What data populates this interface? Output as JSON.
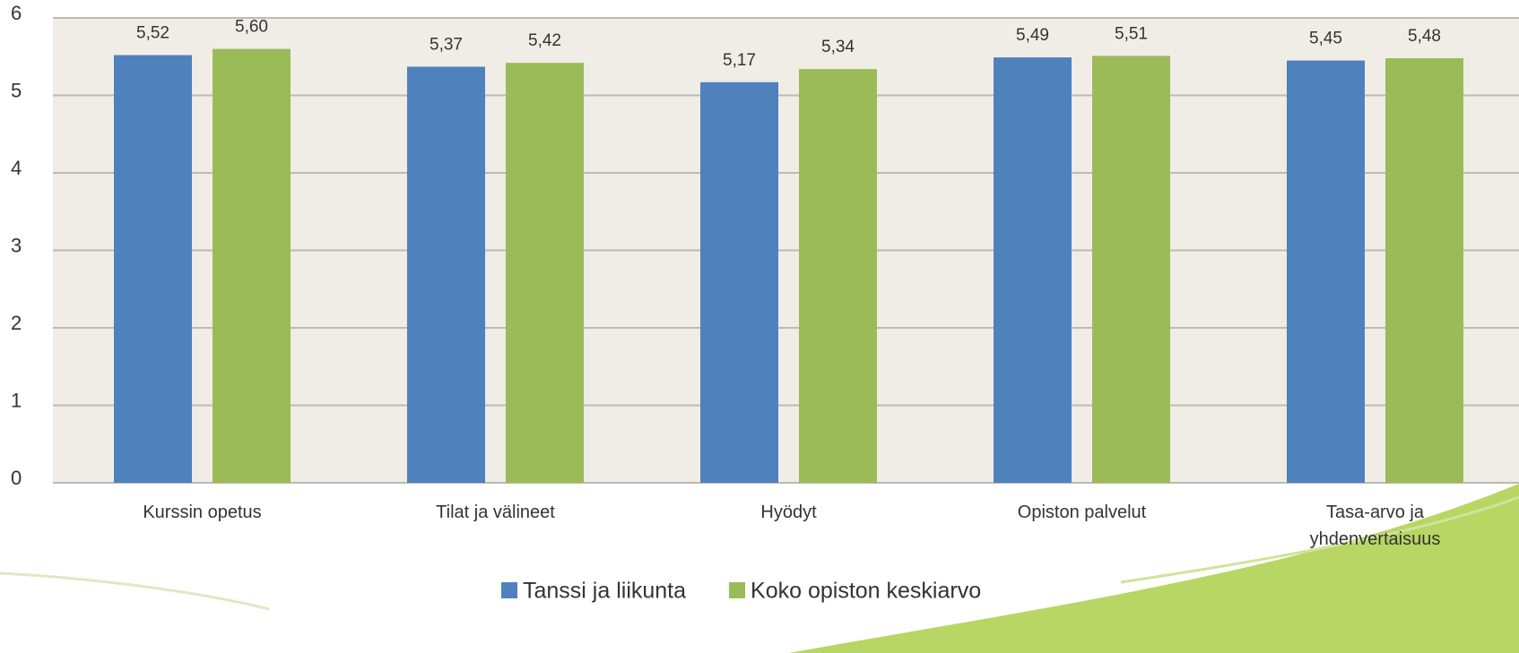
{
  "chart_data": {
    "type": "bar",
    "categories": [
      "Kurssin opetus",
      "Tilat ja välineet",
      "Hyödyt",
      "Opiston palvelut",
      "Tasa-arvo ja yhdenvertaisuus"
    ],
    "series": [
      {
        "name": "Tanssi ja liikunta",
        "color": "#4f81bd",
        "values": [
          5.52,
          5.37,
          5.17,
          5.49,
          5.45
        ],
        "value_labels": [
          "5,52",
          "5,37",
          "5,17",
          "5,49",
          "5,45"
        ]
      },
      {
        "name": "Koko opiston keskiarvo",
        "color": "#9bbb59",
        "values": [
          5.6,
          5.42,
          5.34,
          5.51,
          5.48
        ],
        "value_labels": [
          "5,60",
          "5,42",
          "5,34",
          "5,51",
          "5,48"
        ]
      }
    ],
    "ylim": [
      0,
      6
    ],
    "yticks": [
      0,
      1,
      2,
      3,
      4,
      5,
      6
    ],
    "grid": true,
    "legend": "bottom"
  }
}
